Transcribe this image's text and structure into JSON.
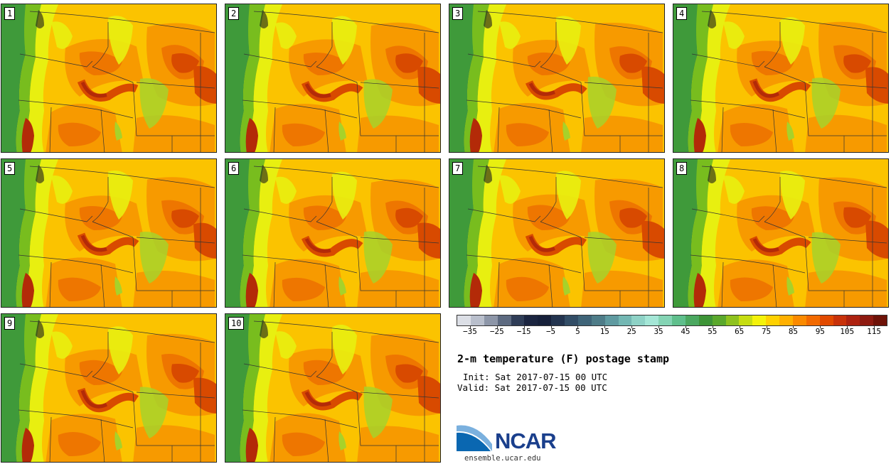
{
  "stamps": [
    {
      "label": "1"
    },
    {
      "label": "2"
    },
    {
      "label": "3"
    },
    {
      "label": "4"
    },
    {
      "label": "5"
    },
    {
      "label": "6"
    },
    {
      "label": "7"
    },
    {
      "label": "8"
    },
    {
      "label": "9"
    },
    {
      "label": "10"
    }
  ],
  "colorbar": {
    "tick_labels": [
      "−35",
      "−25",
      "−15",
      "−5",
      "5",
      "15",
      "25",
      "35",
      "45",
      "55",
      "65",
      "75",
      "85",
      "95",
      "105",
      "115"
    ],
    "colors": [
      "#dcdfe6",
      "#b9bfcc",
      "#8d96a8",
      "#5d6a80",
      "#2f3d57",
      "#1b2540",
      "#16203a",
      "#23344f",
      "#324d66",
      "#3f6478",
      "#4e7c88",
      "#5f9aa0",
      "#73b7b3",
      "#8ed2c6",
      "#a4e6d6",
      "#84d4b4",
      "#5fbf8c",
      "#4ba860",
      "#3d9437",
      "#5aa82c",
      "#8ec21e",
      "#c6dd12",
      "#f4f20a",
      "#ffd100",
      "#ffb000",
      "#fb8a00",
      "#f26a00",
      "#e14a00",
      "#c8320a",
      "#ad2210",
      "#8e1a10",
      "#6e1208"
    ],
    "units": "F"
  },
  "title": "2-m temperature (F) postage stamp",
  "init": "Init: Sat 2017-07-15 00 UTC",
  "valid": "Valid: Sat 2017-07-15 00 UTC",
  "logo_text": "NCAR",
  "site": "ensemble.ucar.edu",
  "map_colors": {
    "ocean": "#3f9a3a",
    "ocean_coast": "#78bd1e",
    "cool": "#e8ef10",
    "warm": "#fbc300",
    "hot": "#f79a00",
    "hotter": "#ee7600",
    "hottest": "#d84a00",
    "valley": "#b32a08",
    "mountain": "#a7d22a"
  }
}
